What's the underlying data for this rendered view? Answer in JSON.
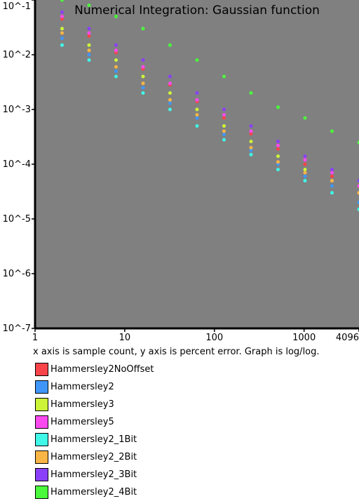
{
  "chart_data": {
    "type": "scatter",
    "title": "Numerical Integration: Gaussian function",
    "caption": "x axis is sample count, y axis is percent error. Graph is log/log.",
    "x_scale": "log",
    "y_scale": "log",
    "xlim": [
      1,
      4096
    ],
    "ylim": [
      1e-07,
      0.1
    ],
    "x_ticks": [
      {
        "value": 1,
        "label": "1"
      },
      {
        "value": 10,
        "label": "10"
      },
      {
        "value": 100,
        "label": "100"
      },
      {
        "value": 1000,
        "label": "1000"
      },
      {
        "value": 4096,
        "label": "4096"
      }
    ],
    "y_ticks": [
      {
        "value": 0.1,
        "label": "10^-1"
      },
      {
        "value": 0.01,
        "label": "10^-2"
      },
      {
        "value": 0.001,
        "label": "10^-3"
      },
      {
        "value": 0.0001,
        "label": "10^-4"
      },
      {
        "value": 1e-05,
        "label": "10^-5"
      },
      {
        "value": 1e-06,
        "label": "10^-6"
      },
      {
        "value": 1e-07,
        "label": "10^-7"
      }
    ],
    "plot_background": "#808080",
    "series": [
      {
        "name": "Hammersley2NoOffset",
        "color": "#f94449",
        "x": [
          2,
          4,
          8,
          16,
          32,
          64,
          128,
          256,
          512,
          1024,
          2048,
          4096
        ],
        "y": [
          0.045,
          0.022,
          0.011,
          0.0055,
          0.0028,
          0.0014,
          0.0007,
          0.00036,
          0.00019,
          0.0001,
          6e-05,
          4e-05
        ]
      },
      {
        "name": "Hammersley2",
        "color": "#4096f8",
        "x": [
          2,
          4,
          8,
          16,
          32,
          64,
          128,
          256,
          512,
          1024,
          2048,
          4096
        ],
        "y": [
          0.02,
          0.01,
          0.005,
          0.0025,
          0.0013,
          0.0007,
          0.00035,
          0.00018,
          0.0001,
          6e-05,
          4e-05,
          2e-05
        ]
      },
      {
        "name": "Hammersley3",
        "color": "#cdf538",
        "x": [
          2,
          4,
          8,
          16,
          32,
          64,
          128,
          256,
          512,
          1024,
          2048,
          4096
        ],
        "y": [
          0.03,
          0.015,
          0.008,
          0.004,
          0.002,
          0.001,
          0.0005,
          0.00026,
          0.00014,
          8e-05,
          5e-05,
          3e-05
        ]
      },
      {
        "name": "Hammersley5",
        "color": "#f94aef",
        "x": [
          2,
          4,
          8,
          16,
          32,
          64,
          128,
          256,
          512,
          1024,
          2048,
          4096
        ],
        "y": [
          0.05,
          0.025,
          0.012,
          0.006,
          0.003,
          0.0015,
          0.0008,
          0.0004,
          0.00022,
          0.00012,
          7e-05,
          4e-05
        ]
      },
      {
        "name": "Hammersley2_1Bit",
        "color": "#40f8e8",
        "x": [
          2,
          4,
          8,
          16,
          32,
          64,
          128,
          256,
          512,
          1024,
          2048,
          4096
        ],
        "y": [
          0.015,
          0.008,
          0.004,
          0.002,
          0.001,
          0.0005,
          0.00028,
          0.00015,
          8e-05,
          5e-05,
          3e-05,
          1.5e-05
        ]
      },
      {
        "name": "Hammersley2_2Bit",
        "color": "#f9b546",
        "x": [
          2,
          4,
          8,
          16,
          32,
          64,
          128,
          256,
          512,
          1024,
          2048,
          4096
        ],
        "y": [
          0.025,
          0.012,
          0.006,
          0.003,
          0.0015,
          0.0008,
          0.0004,
          0.0002,
          0.00011,
          7e-05,
          5e-05,
          3e-05
        ]
      },
      {
        "name": "Hammersley2_3Bit",
        "color": "#8a40f9",
        "x": [
          2,
          4,
          8,
          16,
          32,
          64,
          128,
          256,
          512,
          1024,
          2048,
          4096
        ],
        "y": [
          0.06,
          0.03,
          0.015,
          0.008,
          0.004,
          0.002,
          0.001,
          0.0005,
          0.00026,
          0.00014,
          8e-05,
          5e-05
        ]
      },
      {
        "name": "Hammersley2_4Bit",
        "color": "#4bf93c",
        "x": [
          2,
          4,
          8,
          16,
          32,
          64,
          128,
          256,
          512,
          1024,
          2048,
          4096
        ],
        "y": [
          0.1,
          0.08,
          0.05,
          0.03,
          0.015,
          0.008,
          0.004,
          0.002,
          0.0011,
          0.0007,
          0.0004,
          0.00025
        ]
      }
    ]
  }
}
